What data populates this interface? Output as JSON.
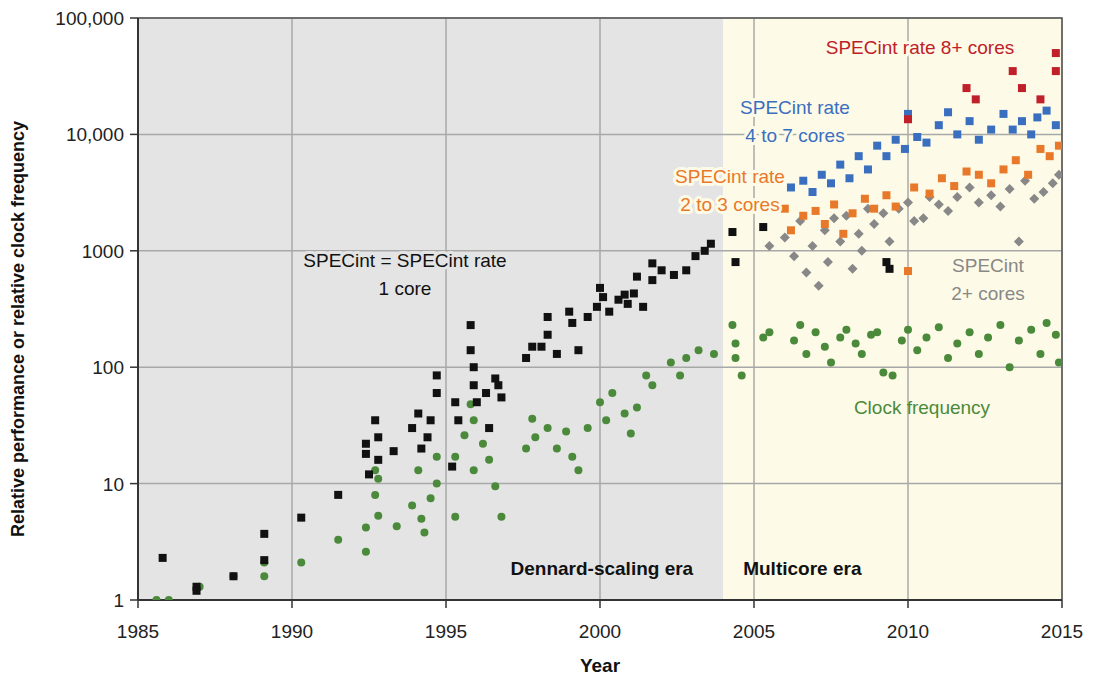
{
  "chart_data": {
    "type": "scatter",
    "x_label": "Year",
    "y_label": "Relative performance or relative clock frequency",
    "log": "y",
    "grid": true,
    "xlim": [
      1985,
      2015
    ],
    "ylim": [
      1,
      100000
    ],
    "xticks": [
      1985,
      1990,
      1995,
      2000,
      2005,
      2010,
      2015
    ],
    "yticks": [
      1,
      10,
      100,
      1000,
      {
        "value": 10000,
        "label": "10,000"
      },
      {
        "value": 100000,
        "label": "100,000"
      }
    ],
    "regions": [
      {
        "label": "Dennard-scaling era",
        "x": [
          1985,
          2004
        ],
        "color": "#e4e4e4"
      },
      {
        "label": "Multicore era",
        "x": [
          2004,
          2015
        ],
        "color": "#fdfbe7"
      }
    ],
    "series": [
      {
        "name": "Clock frequency",
        "color": "#4a8a3a",
        "marker": "circle",
        "x": [
          1985.6,
          1986.0,
          1987.0,
          1988.1,
          1989.1,
          1989.1,
          1990.3,
          1991.5,
          1992.4,
          1992.4,
          1992.7,
          1992.7,
          1992.8,
          1992.8,
          1993.4,
          1993.9,
          1994.1,
          1994.2,
          1994.3,
          1994.5,
          1994.7,
          1994.7,
          1995.3,
          1995.3,
          1995.6,
          1995.8,
          1995.9,
          1995.9,
          1996.2,
          1996.4,
          1996.6,
          1996.8,
          1997.6,
          1997.8,
          1997.9,
          1998.3,
          1998.6,
          1998.9,
          1999.1,
          1999.3,
          1999.6,
          2000.0,
          2000.2,
          2000.4,
          2000.8,
          2001.0,
          2001.2,
          2001.5,
          2001.7,
          2002.3,
          2002.6,
          2002.8,
          2003.2,
          2003.7,
          2004.3,
          2004.4,
          2004.6,
          2004.4,
          2005.3,
          2005.5,
          2006.3,
          2006.5,
          2006.7,
          2007.0,
          2007.3,
          2007.5,
          2007.8,
          2008.0,
          2008.3,
          2008.5,
          2008.8,
          2009.0,
          2009.2,
          2009.5,
          2009.8,
          2010.0,
          2010.3,
          2010.6,
          2011.0,
          2011.3,
          2011.6,
          2012.0,
          2012.3,
          2012.6,
          2013.0,
          2013.3,
          2013.6,
          2014.0,
          2014.3,
          2014.5,
          2014.8,
          2014.9
        ],
        "values": [
          1,
          1,
          1.3,
          1.6,
          2.1,
          1.6,
          2.1,
          3.3,
          4.2,
          2.6,
          13,
          8,
          11,
          5.3,
          4.3,
          6.5,
          13,
          5,
          3.8,
          7.5,
          17,
          10,
          5.2,
          17,
          26,
          48,
          35,
          13,
          22,
          16,
          9.5,
          5.2,
          20,
          36,
          25,
          30,
          20,
          28,
          17,
          13,
          30,
          50,
          35,
          60,
          40,
          27,
          45,
          85,
          70,
          110,
          85,
          120,
          140,
          130,
          230,
          160,
          85,
          120,
          180,
          200,
          170,
          230,
          130,
          200,
          150,
          110,
          180,
          210,
          160,
          130,
          190,
          200,
          90,
          85,
          170,
          210,
          140,
          180,
          220,
          120,
          160,
          200,
          130,
          180,
          230,
          100,
          170,
          210,
          130,
          240,
          190,
          110
        ]
      },
      {
        "name": "SPECint\n2+ cores",
        "color": "#888888",
        "marker": "diamond",
        "x": [
          2005.5,
          2006.0,
          2006.3,
          2006.5,
          2006.7,
          2006.9,
          2007.1,
          2007.3,
          2007.4,
          2007.6,
          2007.8,
          2008.0,
          2008.2,
          2008.4,
          2008.5,
          2008.7,
          2008.9,
          2009.2,
          2009.4,
          2009.7,
          2010.0,
          2010.2,
          2010.5,
          2010.7,
          2011.0,
          2011.3,
          2011.6,
          2012.0,
          2012.3,
          2012.7,
          2013.0,
          2013.3,
          2013.6,
          2013.8,
          2014.1,
          2014.4,
          2014.7,
          2014.9
        ],
        "values": [
          1100,
          1300,
          900,
          1800,
          650,
          1100,
          500,
          1500,
          800,
          1900,
          1200,
          2000,
          700,
          1400,
          1000,
          2300,
          1700,
          2100,
          1200,
          2300,
          2600,
          1800,
          1900,
          2900,
          2500,
          2200,
          2900,
          3500,
          2600,
          3000,
          2400,
          3400,
          1200,
          4000,
          2800,
          3200,
          3800,
          4500
        ]
      },
      {
        "name": "SPECint rate\n2 to 3 cores",
        "color": "#e8792a",
        "marker": "square",
        "x": [
          2006.0,
          2006.2,
          2006.6,
          2007.0,
          2007.3,
          2007.6,
          2007.9,
          2008.2,
          2008.6,
          2008.9,
          2009.3,
          2009.6,
          2010.0,
          2010.2,
          2010.7,
          2011.1,
          2011.5,
          2011.9,
          2012.3,
          2012.7,
          2013.1,
          2013.5,
          2013.9,
          2014.3,
          2014.6,
          2014.9
        ],
        "values": [
          2300,
          1500,
          2000,
          2200,
          1700,
          2500,
          1400,
          2100,
          2800,
          2300,
          3000,
          2400,
          670,
          3500,
          3100,
          4200,
          3600,
          4800,
          4500,
          3800,
          5000,
          6000,
          4500,
          7500,
          6500,
          8000
        ]
      },
      {
        "name": "SPECint rate\n4 to 7 cores",
        "color": "#3a6fc0",
        "marker": "square",
        "x": [
          2006.2,
          2006.6,
          2006.9,
          2007.2,
          2007.5,
          2007.8,
          2008.1,
          2008.4,
          2008.7,
          2009.0,
          2009.3,
          2009.6,
          2009.9,
          2010.0,
          2010.3,
          2010.6,
          2011.0,
          2011.3,
          2011.6,
          2012.0,
          2012.3,
          2012.7,
          2013.1,
          2013.4,
          2013.7,
          2014.0,
          2014.2,
          2014.5,
          2014.8
        ],
        "values": [
          3500,
          4000,
          3200,
          4500,
          3800,
          5500,
          4200,
          6500,
          5000,
          8000,
          6500,
          9000,
          7500,
          15000,
          9500,
          8500,
          12000,
          15500,
          10000,
          13000,
          9000,
          11000,
          15000,
          11000,
          13000,
          10000,
          14000,
          16000,
          12000
        ]
      },
      {
        "name": "SPECint rate 8+ cores",
        "color": "#c0202a",
        "marker": "square",
        "x": [
          2010.0,
          2011.9,
          2012.2,
          2013.4,
          2013.7,
          2014.3,
          2014.8,
          2014.8
        ],
        "values": [
          13500,
          25000,
          20000,
          35000,
          25000,
          20000,
          50000,
          35000
        ]
      },
      {
        "name": "SPECint = SPECint rate\n1 core",
        "color": "#111111",
        "marker": "square",
        "x": [
          1985.8,
          1986.9,
          1986.9,
          1988.1,
          1989.1,
          1989.1,
          1990.3,
          1991.5,
          1992.4,
          1992.4,
          1992.5,
          1992.7,
          1992.8,
          1992.8,
          1993.3,
          1993.9,
          1994.1,
          1994.2,
          1994.4,
          1994.5,
          1994.7,
          1994.7,
          1995.2,
          1995.3,
          1995.4,
          1995.8,
          1995.8,
          1995.9,
          1995.9,
          1996.0,
          1996.3,
          1996.4,
          1996.6,
          1996.7,
          1996.8,
          1997.6,
          1997.8,
          1998.1,
          1998.3,
          1998.3,
          1998.6,
          1999.0,
          1999.1,
          1999.3,
          1999.6,
          1999.9,
          2000.0,
          2000.1,
          2000.3,
          2000.6,
          2000.8,
          2000.9,
          2001.1,
          2001.2,
          2001.4,
          2001.7,
          2001.7,
          2002.0,
          2002.4,
          2002.8,
          2003.1,
          2003.4,
          2003.6,
          2004.3,
          2004.4,
          2005.3,
          2009.3,
          2009.4
        ],
        "values": [
          2.3,
          1.3,
          1.2,
          1.6,
          3.7,
          2.2,
          5.1,
          8,
          22,
          18,
          12,
          35,
          25,
          16,
          19,
          30,
          40,
          20,
          25,
          35,
          85,
          60,
          14,
          50,
          35,
          230,
          140,
          100,
          70,
          50,
          60,
          30,
          80,
          70,
          55,
          120,
          150,
          150,
          270,
          190,
          130,
          300,
          240,
          140,
          270,
          330,
          480,
          400,
          300,
          380,
          420,
          350,
          430,
          600,
          330,
          780,
          560,
          680,
          620,
          680,
          900,
          1000,
          1150,
          1450,
          800,
          1600,
          800,
          700
        ]
      }
    ]
  }
}
